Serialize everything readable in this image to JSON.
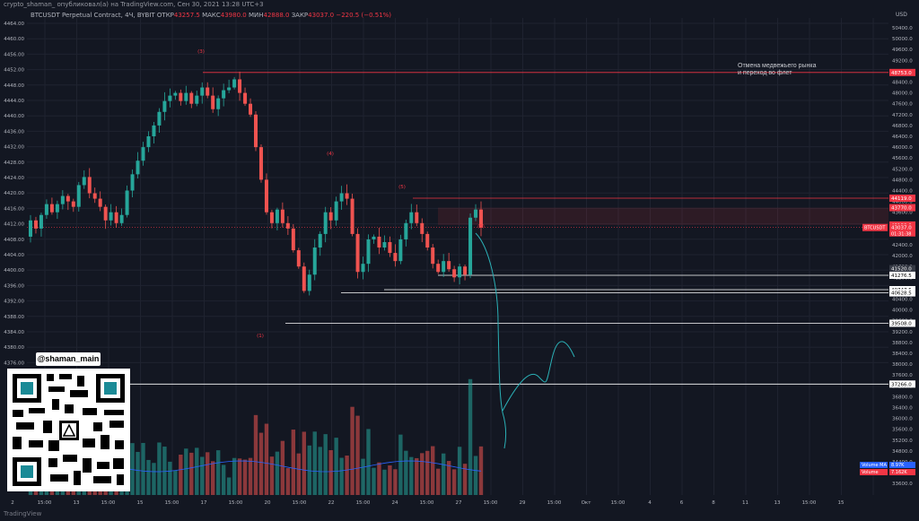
{
  "header": {
    "title": "crypto_shaman_ опубликовал(а) на TradingView.com, Сен 30, 2021 13:28 UTC+3",
    "symbol": "BTCUSDT Perpetual Contract, 4Ч, BYBIT",
    "open_label": "ОТКР",
    "open": "43257.5",
    "high_label": "МАКС",
    "high": "43980.0",
    "low_label": "МИН",
    "low": "42888.0",
    "close_label": "ЗАКР",
    "close": "43037.0",
    "change": "−220.5 (−0.51%)"
  },
  "branding": {
    "badge": "@shaman_main",
    "footer": "TradingView"
  },
  "colors": {
    "up": "#26a69a",
    "down": "#ef5350",
    "background": "#131722",
    "grid": "#1f2330"
  },
  "chart_data": {
    "type": "candlestick",
    "currency": "USD",
    "left_axis": {
      "ticks": [
        "4464.00",
        "4460.00",
        "4456.00",
        "4452.00",
        "4448.00",
        "4444.00",
        "4440.00",
        "4436.00",
        "4432.00",
        "4428.00",
        "4424.00",
        "4420.00",
        "4416.00",
        "4412.00",
        "4408.00",
        "4404.00",
        "4400.00",
        "4396.00",
        "4392.00",
        "4388.00",
        "4384.00",
        "4380.00",
        "4376.00"
      ]
    },
    "right_axis": {
      "ticks": [
        "50400.0",
        "50000.0",
        "49600.0",
        "49200.0",
        "48800.0",
        "48400.0",
        "48000.0",
        "47600.0",
        "47200.0",
        "46800.0",
        "46400.0",
        "46000.0",
        "45600.0",
        "45200.0",
        "44800.0",
        "44400.0",
        "44000.0",
        "43600.0",
        "43200.0",
        "42800.0",
        "42400.0",
        "42000.0",
        "41600.0",
        "41200.0",
        "40800.0",
        "40400.0",
        "40000.0",
        "39600.0",
        "39200.0",
        "38800.0",
        "38400.0",
        "38000.0",
        "37600.0",
        "37200.0",
        "36800.0",
        "36400.0",
        "36000.0",
        "35600.0",
        "35200.0",
        "34800.0",
        "34400.0",
        "34000.0",
        "33600.0"
      ]
    },
    "x_ticks": [
      "2",
      "15:00",
      "13",
      "15:00",
      "15",
      "15:00",
      "17",
      "15:00",
      "20",
      "15:00",
      "22",
      "15:00",
      "24",
      "15:00",
      "27",
      "15:00",
      "29",
      "15:00",
      "Окт",
      "15:00",
      "4",
      "6",
      "8",
      "11",
      "13",
      "15:00",
      "15"
    ],
    "price_levels": [
      {
        "label": "48753.0",
        "color": "#f23645",
        "kind": "resistance"
      },
      {
        "label": "44119.0",
        "color": "#f23645",
        "kind": "resistance"
      },
      {
        "label": "43770.0",
        "color": "#f23645",
        "kind": "zone"
      },
      {
        "label": "43130.0",
        "color": "#f23645",
        "kind": "zone"
      },
      {
        "label": "43037.0",
        "color": "#f23645",
        "kind": "last"
      },
      {
        "label": "41520.0",
        "color": "#363a45",
        "kind": "level"
      },
      {
        "label": "41276.5",
        "color": "#ffffff",
        "kind": "support"
      },
      {
        "label": "40747.5",
        "color": "#ffffff",
        "kind": "support"
      },
      {
        "label": "40628.5",
        "color": "#ffffff",
        "kind": "support"
      },
      {
        "label": "39508.0",
        "color": "#ffffff",
        "kind": "support"
      },
      {
        "label": "37266.0",
        "color": "#ffffff",
        "kind": "support"
      }
    ],
    "last_price_label": "BTCUSDT",
    "last_price": "43037.0",
    "countdown": "01:31:38",
    "volume_labels": [
      {
        "name": "Volume MA",
        "value": "8.97K"
      },
      {
        "name": "Volume",
        "value": "7.162K"
      }
    ],
    "annotations": {
      "peak_right": "Отмена медвежьего рынка",
      "peak_right_2": "и переход во  флет",
      "count_1": "(3)",
      "count_2": "(4)",
      "count_3": "(5)",
      "count_4": "(5)",
      "count_5": "(1)"
    },
    "candles_approx": [
      [
        42700,
        43300
      ],
      [
        43300,
        43000
      ],
      [
        43000,
        43500
      ],
      [
        43500,
        43900
      ],
      [
        43900,
        43600
      ],
      [
        43600,
        43900
      ],
      [
        43900,
        44200
      ],
      [
        44200,
        44000
      ],
      [
        44000,
        43800
      ],
      [
        43800,
        44600
      ],
      [
        44600,
        44900
      ],
      [
        44900,
        44300
      ],
      [
        44300,
        44100
      ],
      [
        44100,
        43800
      ],
      [
        43800,
        43300
      ],
      [
        43300,
        43600
      ],
      [
        43600,
        43200
      ],
      [
        43200,
        43500
      ],
      [
        43500,
        44400
      ],
      [
        44400,
        45000
      ],
      [
        45000,
        45500
      ],
      [
        45500,
        46000
      ],
      [
        46000,
        46400
      ],
      [
        46400,
        46800
      ],
      [
        46800,
        47300
      ],
      [
        47300,
        47700
      ],
      [
        47700,
        47900
      ],
      [
        47900,
        48000
      ],
      [
        48000,
        47700
      ],
      [
        47700,
        48000
      ],
      [
        48000,
        47600
      ],
      [
        47600,
        47900
      ],
      [
        47900,
        48200
      ],
      [
        48200,
        47900
      ],
      [
        47900,
        47400
      ],
      [
        47400,
        47800
      ],
      [
        47800,
        48100
      ],
      [
        48100,
        48200
      ],
      [
        48200,
        48500
      ],
      [
        48500,
        48000
      ],
      [
        48000,
        47600
      ],
      [
        47600,
        47200
      ],
      [
        47200,
        46000
      ],
      [
        46000,
        44800
      ],
      [
        44800,
        43600
      ],
      [
        43600,
        43200
      ],
      [
        43200,
        43700
      ],
      [
        43700,
        43200
      ],
      [
        43200,
        43000
      ],
      [
        43000,
        42200
      ],
      [
        42200,
        41600
      ],
      [
        41600,
        40700
      ],
      [
        40700,
        41300
      ],
      [
        41300,
        42300
      ],
      [
        42300,
        42800
      ],
      [
        42800,
        43600
      ],
      [
        43600,
        43300
      ],
      [
        43300,
        44000
      ],
      [
        44000,
        44300
      ],
      [
        44300,
        44100
      ],
      [
        44100,
        42800
      ],
      [
        42800,
        41400
      ],
      [
        41400,
        41700
      ],
      [
        41700,
        42600
      ],
      [
        42600,
        42700
      ],
      [
        42700,
        42300
      ],
      [
        42300,
        42500
      ],
      [
        42500,
        42100
      ],
      [
        42100,
        41800
      ],
      [
        41800,
        42600
      ],
      [
        42600,
        43200
      ],
      [
        43200,
        43600
      ],
      [
        43600,
        43200
      ],
      [
        43200,
        42800
      ],
      [
        42800,
        42300
      ],
      [
        42300,
        41700
      ],
      [
        41700,
        41400
      ],
      [
        41400,
        41800
      ],
      [
        41800,
        41500
      ],
      [
        41500,
        41200
      ],
      [
        41200,
        41600
      ],
      [
        41600,
        41300
      ],
      [
        41300,
        43400
      ],
      [
        43400,
        43700
      ],
      [
        43700,
        43037
      ]
    ]
  }
}
